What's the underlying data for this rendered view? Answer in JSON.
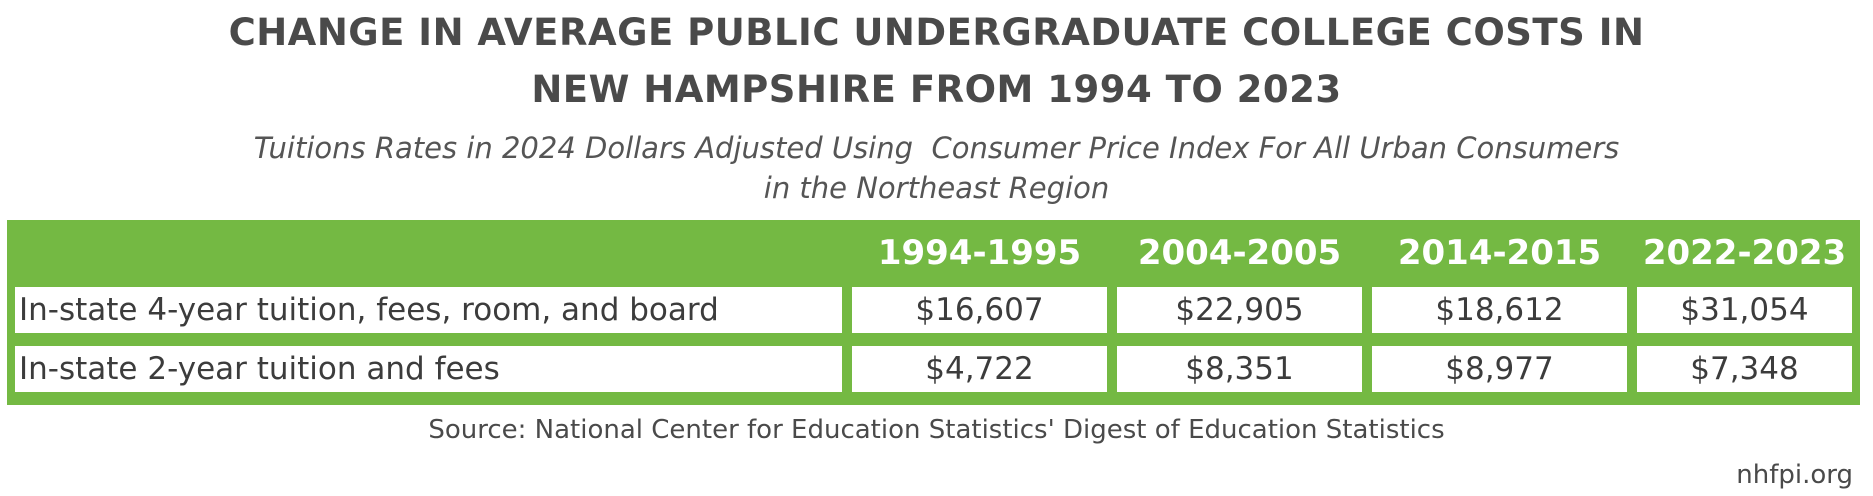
{
  "chart_data": {
    "type": "table",
    "title_lines": [
      "CHANGE IN AVERAGE PUBLIC UNDERGRADUATE COLLEGE COSTS IN",
      "NEW HAMPSHIRE FROM 1994 TO 2023"
    ],
    "subtitle_lines": [
      "Tuitions Rates in 2024 Dollars Adjusted Using  Consumer Price Index For All Urban Consumers",
      "in the Northeast Region"
    ],
    "columns": [
      "1994-1995",
      "2004-2005",
      "2014-2015",
      "2022-2023"
    ],
    "rows": [
      {
        "label": "In-state 4-year tuition, fees, room, and board",
        "values": [
          "$16,607",
          "$22,905",
          "$18,612",
          "$31,054"
        ]
      },
      {
        "label": "In-state 2-year tuition and fees",
        "values": [
          "$4,722",
          "$8,351",
          "$8,977",
          "$7,348"
        ]
      }
    ],
    "source": "Source: National Center for Education Statistics' Digest of Education Statistics"
  },
  "branding": "nhfpi.org",
  "colors": {
    "header_green": "#74b943",
    "title_text": "#4a4a4a"
  }
}
